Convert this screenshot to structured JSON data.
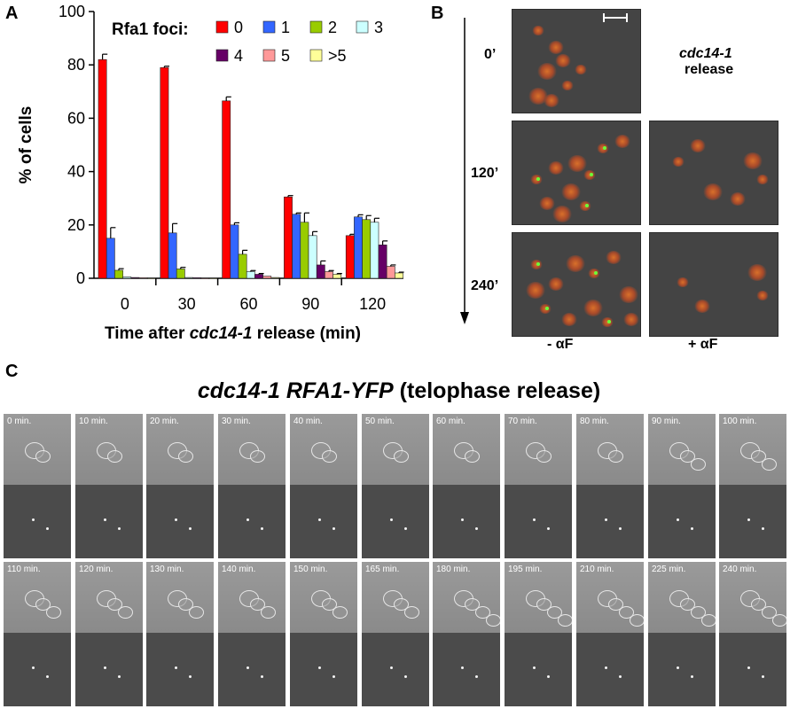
{
  "panels": {
    "a": "A",
    "b": "B",
    "c": "C"
  },
  "chart_data": {
    "type": "bar",
    "categories": [
      "0",
      "30",
      "60",
      "90",
      "120"
    ],
    "xlabel_parts": [
      "Time after ",
      "cdc14-1",
      " release (min)"
    ],
    "ylabel": "% of cells",
    "ylim": [
      0,
      100
    ],
    "yticks": [
      "0",
      "20",
      "40",
      "60",
      "80",
      "100"
    ],
    "legend_title": "Rfa1 foci:",
    "series": [
      {
        "name": "0",
        "color": "#ff0000",
        "values": [
          82,
          79,
          66.5,
          30.5,
          16
        ],
        "errors": [
          2,
          0.5,
          1.5,
          0.5,
          0.5
        ]
      },
      {
        "name": "1",
        "color": "#3366ff",
        "values": [
          15,
          17,
          20,
          24,
          23
        ],
        "errors": [
          4,
          3.5,
          0.8,
          0.5,
          0.8
        ]
      },
      {
        "name": "2",
        "color": "#99cc00",
        "values": [
          3,
          3.5,
          9,
          21,
          22
        ],
        "errors": [
          0.6,
          0.6,
          1.5,
          3.5,
          1.5
        ]
      },
      {
        "name": "3",
        "color": "#ccffff",
        "values": [
          0.5,
          0.3,
          2.5,
          16,
          21
        ],
        "errors": [
          0.2,
          0.1,
          0.4,
          1.5,
          1.5
        ]
      },
      {
        "name": "4",
        "color": "#660066",
        "values": [
          0.3,
          0.2,
          1.5,
          5,
          12.5
        ],
        "errors": [
          0.1,
          0.1,
          0.3,
          1.5,
          1.5
        ]
      },
      {
        "name": "5",
        "color": "#ff9999",
        "values": [
          0.2,
          0.1,
          0.8,
          2.5,
          4.5
        ],
        "errors": [
          0.1,
          0.1,
          0.2,
          0.4,
          0.5
        ]
      },
      {
        "name": ">5",
        "color": "#ffff99",
        "values": [
          0.1,
          0.1,
          0.3,
          1.5,
          2
        ],
        "errors": [
          0.1,
          0.1,
          0.1,
          0.3,
          0.3
        ]
      }
    ]
  },
  "panelB": {
    "times": [
      "0’",
      "120’",
      "240’"
    ],
    "release_gene": "cdc14-1",
    "release_word": "release",
    "col_minus": "- αF",
    "col_plus": "+ αF"
  },
  "panelC": {
    "title_gene": "cdc14-1 RFA1-YFP",
    "title_rest": " (telophase release)",
    "row1": [
      "0 min.",
      "10 min.",
      "20 min.",
      "30 min.",
      "40 min.",
      "50 min.",
      "60 min.",
      "70 min.",
      "80 min.",
      "90 min.",
      "100 min."
    ],
    "row2": [
      "110 min.",
      "120 min.",
      "130 min.",
      "140 min.",
      "150 min.",
      "165 min.",
      "180 min.",
      "195 min.",
      "210 min.",
      "225 min.",
      "240 min."
    ]
  }
}
